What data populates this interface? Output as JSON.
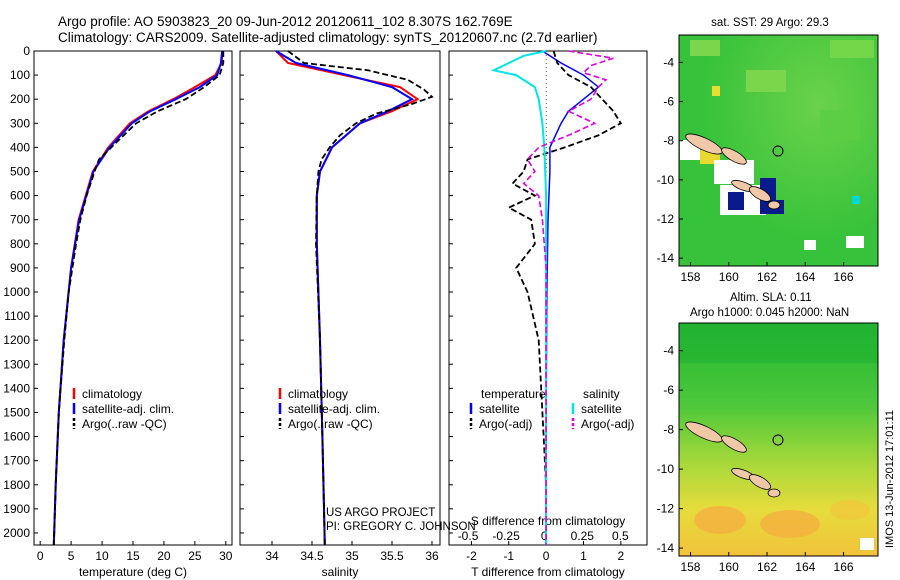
{
  "header": {
    "line1": "Argo profile: AO 5903823_20 09-Jun-2012 20120611_102 8.307S 162.769E",
    "line2": "Climatology: CARS2009. Satellite-adjusted climatology: synTS_20120607.nc (2.7d earlier)"
  },
  "colors": {
    "climatology": "#ff0000",
    "satellite": "#0000ff",
    "argo": "#000000",
    "salinity_sat": "#00e5e5",
    "salinity_argo": "#e000e0",
    "land": "#f0c8a8",
    "sst_base": "#3cc83c"
  },
  "depth_axis": {
    "ticks": [
      "0",
      "100",
      "200",
      "300",
      "400",
      "500",
      "600",
      "700",
      "800",
      "900",
      "1000",
      "1100",
      "1200",
      "1300",
      "1400",
      "1500",
      "1600",
      "1700",
      "1800",
      "1900",
      "2000"
    ],
    "ylim": [
      0,
      2050
    ]
  },
  "credit": {
    "line1": "US ARGO PROJECT",
    "line2": "PI: GREGORY C. JOHNSON"
  },
  "timestamp": "IMOS 13-Jun-2012 17:01:11",
  "chart_data": [
    {
      "type": "line",
      "xlabel": "temperature (deg C)",
      "xlim": [
        -1,
        31
      ],
      "xticks": [
        "0",
        "5",
        "10",
        "15",
        "20",
        "25",
        "30"
      ],
      "legend": [
        "climatology",
        "satellite-adj. clim.",
        "Argo(..raw -QC)"
      ],
      "series": [
        {
          "name": "climatology",
          "depth": [
            0,
            50,
            100,
            150,
            200,
            250,
            300,
            400,
            500,
            700,
            900,
            1200,
            1500,
            1800,
            2050
          ],
          "values": [
            29.5,
            29.3,
            28.3,
            25.0,
            21.5,
            17.5,
            14.5,
            11.0,
            8.5,
            6.2,
            5.0,
            3.8,
            3.0,
            2.5,
            2.2
          ]
        },
        {
          "name": "satellite-adj. clim.",
          "depth": [
            0,
            50,
            100,
            150,
            200,
            250,
            300,
            400,
            500,
            700,
            900,
            1200,
            1500,
            1800,
            2050
          ],
          "values": [
            29.4,
            29.2,
            28.6,
            25.8,
            21.9,
            17.8,
            14.8,
            11.2,
            8.6,
            6.3,
            5.0,
            3.8,
            3.0,
            2.5,
            2.2
          ]
        },
        {
          "name": "Argo(..raw -QC)",
          "depth": [
            0,
            50,
            100,
            150,
            200,
            250,
            300,
            350,
            400,
            450,
            500,
            600,
            700,
            800,
            900,
            1000,
            1200,
            1500,
            1800,
            2050
          ],
          "values": [
            29.6,
            29.6,
            29.0,
            26.5,
            23.5,
            19.0,
            15.5,
            13.5,
            11.5,
            9.5,
            8.8,
            7.5,
            6.5,
            5.8,
            5.2,
            4.6,
            3.9,
            3.0,
            2.5,
            2.2
          ]
        }
      ]
    },
    {
      "type": "line",
      "xlabel": "salinity",
      "xlim": [
        33.6,
        36.1
      ],
      "xticks": [
        "34",
        "34.5",
        "35",
        "35.5",
        "36"
      ],
      "legend": [
        "climatology",
        "satellite-adj. clim.",
        "Argo(..raw -QC)"
      ],
      "series": [
        {
          "name": "climatology",
          "depth": [
            0,
            50,
            100,
            150,
            200,
            250,
            300,
            400,
            500,
            600,
            800,
            1200,
            1600,
            2050
          ],
          "values": [
            34.05,
            34.2,
            34.9,
            35.6,
            35.82,
            35.5,
            35.1,
            34.75,
            34.6,
            34.56,
            34.56,
            34.6,
            34.63,
            34.66
          ]
        },
        {
          "name": "satellite-adj. clim.",
          "depth": [
            0,
            50,
            100,
            150,
            200,
            250,
            300,
            400,
            500,
            600,
            800,
            1200,
            1600,
            2050
          ],
          "values": [
            34.05,
            34.3,
            34.95,
            35.5,
            35.75,
            35.45,
            35.1,
            34.75,
            34.6,
            34.56,
            34.56,
            34.6,
            34.63,
            34.66
          ]
        },
        {
          "name": "Argo(..raw -QC)",
          "depth": [
            0,
            50,
            80,
            120,
            160,
            190,
            220,
            260,
            300,
            350,
            400,
            450,
            500,
            600,
            800,
            1200,
            1600,
            2050
          ],
          "values": [
            34.2,
            34.4,
            35.2,
            35.7,
            35.9,
            36.0,
            35.75,
            35.3,
            35.05,
            34.85,
            34.72,
            34.62,
            34.58,
            34.56,
            34.55,
            34.6,
            34.63,
            34.66
          ]
        }
      ]
    },
    {
      "type": "line",
      "xlabel": "T difference from climatology",
      "xlabel2": "S difference from climatology",
      "xlim": [
        -2.6,
        2.7
      ],
      "xticks": [
        "-2",
        "-1",
        "0",
        "1",
        "2"
      ],
      "xticks2": [
        "-0.5",
        "-0.25",
        "0",
        "0.25",
        "0.5"
      ],
      "legend_left": [
        "temperature",
        "satellite",
        "Argo(-adj)"
      ],
      "legend_right": [
        "salinity",
        "satellite",
        "Argo(-adj)"
      ],
      "series": [
        {
          "name": "temperature satellite",
          "depth": [
            0,
            50,
            100,
            150,
            200,
            250,
            300,
            400,
            500,
            700,
            1000,
            1500,
            2050
          ],
          "values": [
            -0.1,
            0.4,
            1.0,
            1.4,
            1.0,
            0.6,
            0.4,
            0.1,
            0.1,
            0.05,
            0.02,
            0.0,
            0.0
          ]
        },
        {
          "name": "temperature Argo(-adj)",
          "depth": [
            0,
            50,
            100,
            150,
            200,
            250,
            300,
            350,
            400,
            450,
            500,
            550,
            600,
            650,
            700,
            800,
            900,
            1000,
            1200,
            1500,
            1800,
            2050
          ],
          "values": [
            0.2,
            0.3,
            0.6,
            1.2,
            1.5,
            1.8,
            2.0,
            1.4,
            0.5,
            -0.5,
            -0.6,
            -0.9,
            -0.3,
            -1.0,
            -0.4,
            -0.3,
            -0.8,
            -0.5,
            -0.2,
            -0.1,
            0.0,
            0.0
          ]
        },
        {
          "name": "salinity satellite",
          "depth": [
            0,
            20,
            50,
            80,
            100,
            150,
            200,
            300,
            400,
            600,
            1000,
            1500,
            2050
          ],
          "values": [
            0.0,
            -0.6,
            -1.0,
            -1.4,
            -0.8,
            -0.3,
            -0.2,
            -0.1,
            -0.05,
            0.0,
            0.0,
            0.0,
            0.0
          ]
        },
        {
          "name": "salinity Argo(-adj)",
          "depth": [
            0,
            30,
            60,
            90,
            120,
            150,
            200,
            250,
            300,
            350,
            400,
            450,
            500,
            550,
            600,
            700,
            900,
            1200,
            1500,
            2050
          ],
          "values": [
            0.6,
            1.8,
            1.2,
            1.0,
            1.6,
            1.4,
            1.2,
            0.6,
            1.3,
            0.6,
            -0.2,
            -0.5,
            -0.3,
            -0.6,
            -0.2,
            -0.1,
            0.0,
            0.0,
            0.0,
            0.0
          ]
        }
      ]
    },
    {
      "type": "heatmap",
      "title": "sat. SST: 29 Argo: 29.3",
      "xticks": [
        "158",
        "160",
        "162",
        "164",
        "166"
      ],
      "yticks": [
        "-4",
        "-6",
        "-8",
        "-10",
        "-12",
        "-14"
      ],
      "xlim": [
        157.4,
        167.8
      ],
      "ylim": [
        -14.4,
        -2.6
      ]
    },
    {
      "type": "heatmap",
      "title": "Altim. SLA: 0.11",
      "subtitle": "Argo h1000: 0.045 h2000: NaN",
      "xticks": [
        "158",
        "160",
        "162",
        "164",
        "166"
      ],
      "yticks": [
        "-4",
        "-6",
        "-8",
        "-10",
        "-12",
        "-14"
      ],
      "xlim": [
        157.4,
        167.8
      ],
      "ylim": [
        -14.4,
        -2.6
      ]
    }
  ]
}
